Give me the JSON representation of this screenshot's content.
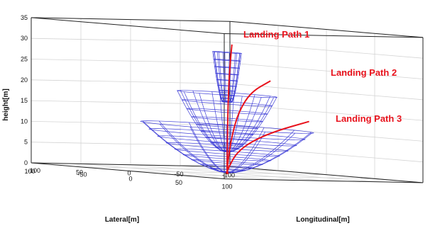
{
  "chart_data": {
    "type": "3d-line",
    "title": "",
    "xlabel": "Longitudinal[m]",
    "ylabel": "Lateral[m]",
    "zlabel": "height[m]",
    "xlim": [
      -100,
      100
    ],
    "ylim": [
      -100,
      100
    ],
    "zlim": [
      0,
      35
    ],
    "x_ticks": [
      "-100",
      "-50",
      "0",
      "50",
      "100"
    ],
    "y_ticks": [
      "100",
      "50",
      "0",
      "-50",
      "-100"
    ],
    "z_ticks": [
      "0",
      "5",
      "10",
      "15",
      "20",
      "25",
      "30",
      "35"
    ],
    "grid": true,
    "colors": {
      "path": "#e8121c",
      "surface": "#3a3ad6",
      "grid": "#d4d4d4",
      "box": "#222222"
    },
    "annotations": [
      {
        "text": "Landing Path 1",
        "color": "#e8121c"
      },
      {
        "text": "Landing Path 2",
        "color": "#e8121c"
      },
      {
        "text": "Landing Path 3",
        "color": "#e8121c"
      }
    ],
    "series": [
      {
        "points": [
          [
            5,
            0,
            31
          ],
          [
            3,
            0,
            26
          ],
          [
            1.5,
            0,
            20
          ],
          [
            0.6,
            0,
            12
          ],
          [
            0.2,
            0,
            5
          ],
          [
            0,
            0,
            1
          ]
        ]
      },
      {
        "points": [
          [
            45,
            0,
            23
          ],
          [
            25,
            0,
            20
          ],
          [
            12,
            0,
            15
          ],
          [
            5,
            0,
            9
          ],
          [
            1.5,
            0,
            4
          ],
          [
            0,
            0,
            0.5
          ]
        ]
      },
      {
        "points": [
          [
            85,
            0,
            14
          ],
          [
            50,
            0,
            11
          ],
          [
            25,
            0,
            8
          ],
          [
            10,
            0,
            5
          ],
          [
            3,
            0,
            2
          ],
          [
            0,
            0,
            0.3
          ]
        ]
      }
    ],
    "funnels": [
      {
        "z_bottom": 17,
        "z_top": 29,
        "r_bottom": 4,
        "r_top": 13
      },
      {
        "z_bottom": 5,
        "z_top": 19,
        "r_bottom": 2,
        "r_top": 45
      },
      {
        "z_bottom": 0,
        "z_top": 11,
        "r_bottom": 1,
        "r_top": 78
      }
    ]
  }
}
